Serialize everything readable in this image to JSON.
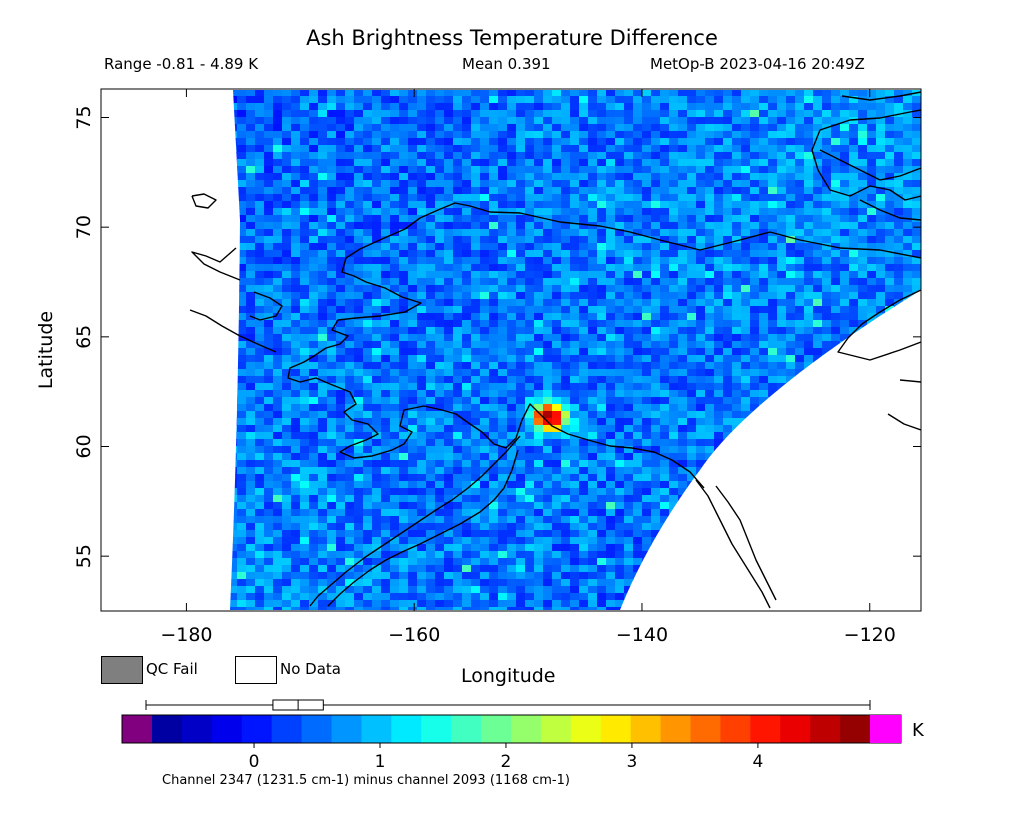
{
  "header": {
    "title": "Ash Brightness Temperature Difference",
    "range": "Range -0.81 - 4.89 K",
    "mean": "Mean 0.391",
    "satellite_time": "MetOp-B 2023-04-16 20:49Z"
  },
  "legend": {
    "qc_fail": "QC Fail",
    "no_data": "No Data",
    "qc_color": "#7f7f7f",
    "nodata_color": "#ffffff"
  },
  "colorbar": {
    "unit": "K",
    "caption": "Channel 2347 (1231.5 cm-1) minus channel 2093 (1168 cm-1)",
    "min": -0.81,
    "max": 4.89,
    "ticks": [
      "0",
      "1",
      "2",
      "3",
      "4"
    ],
    "tick_values": [
      0,
      1,
      2,
      3,
      4
    ],
    "underflow_color": "#800080",
    "overflow_color": "#ff00ff",
    "boxplot": {
      "whisker_low": -0.81,
      "q1": 0.15,
      "median": 0.35,
      "q3": 0.55,
      "whisker_high": 4.89
    }
  },
  "chart_data": {
    "type": "heatmap",
    "title": "Ash Brightness Temperature Difference",
    "xlabel": "Longitude",
    "ylabel": "Latitude",
    "xlim": [
      -187.5,
      -115.5
    ],
    "ylim": [
      52.5,
      76.3
    ],
    "x_ticks": [
      -180,
      -160,
      -140,
      -120
    ],
    "x_tick_labels": [
      "−180",
      "−160",
      "−140",
      "−120"
    ],
    "y_ticks": [
      55,
      60,
      65,
      70,
      75
    ],
    "y_tick_labels": [
      "55",
      "60",
      "65",
      "70",
      "75"
    ],
    "value_range": [
      -0.81,
      4.89
    ],
    "mean": 0.391,
    "background_value": 0.4,
    "hotspot": {
      "lon": -148.5,
      "lat": 61.5,
      "peak_value": 4.8
    },
    "colormap": [
      "#00008f",
      "#0000ff",
      "#0080ff",
      "#00ffff",
      "#80ff80",
      "#ffff00",
      "#ff8000",
      "#ff0000",
      "#800000"
    ]
  }
}
